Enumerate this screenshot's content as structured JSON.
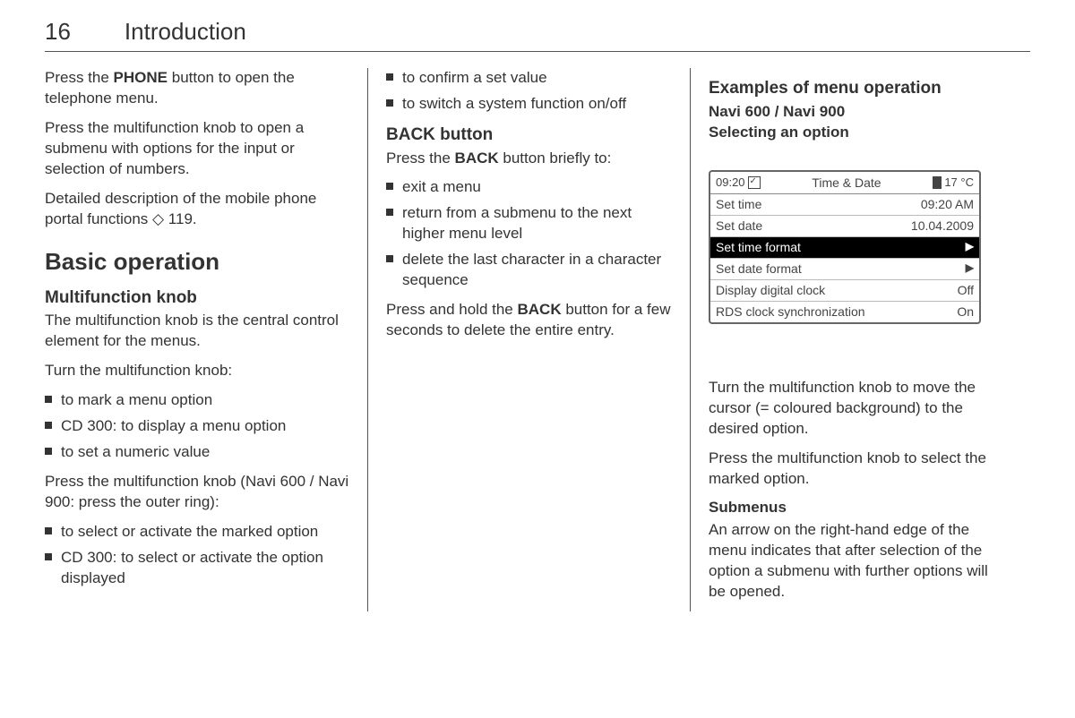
{
  "page": {
    "number": "16",
    "chapter": "Introduction"
  },
  "col1": {
    "p1_a": "Press the ",
    "p1_b": "PHONE",
    "p1_c": " button to open the telephone menu.",
    "p2": "Press the multifunction knob to open a submenu with options for the input or selection of numbers.",
    "p3": "Detailed description of the mobile phone portal functions ◇ 119.",
    "h2": "Basic operation",
    "h3": "Multifunction knob",
    "p4": "The multifunction knob is the central control element for the menus.",
    "p5": "Turn the multifunction knob:",
    "turn_list": [
      "to mark a menu option",
      "CD 300: to display a menu option",
      "to set a numeric value"
    ],
    "p6": "Press the multifunction knob (Navi 600 / Navi 900: press the outer ring):",
    "press_list": [
      "to select or activate the marked option",
      "CD 300: to select or activate the option displayed"
    ]
  },
  "col2": {
    "top_list": [
      "to confirm a set value",
      "to switch a system function on/off"
    ],
    "h3": "BACK button",
    "p1_a": "Press the ",
    "p1_b": "BACK",
    "p1_c": " button briefly to:",
    "back_list": [
      "exit a menu",
      "return from a submenu to the next higher menu level",
      "delete the last character in a character sequence"
    ],
    "p2_a": "Press and hold the ",
    "p2_b": "BACK",
    "p2_c": " button for a few seconds to delete the entire entry."
  },
  "col3": {
    "h3": "Examples of menu operation",
    "sub1": "Navi 600 / Navi 900",
    "sub2": "Selecting an option",
    "screen": {
      "time": "09:20",
      "title": "Time & Date",
      "temp": "17 °C",
      "rows": [
        {
          "label": "Set time",
          "value": "09:20 AM",
          "selected": false,
          "arrow": false
        },
        {
          "label": "Set date",
          "value": "10.04.2009",
          "selected": false,
          "arrow": false
        },
        {
          "label": "Set time format",
          "value": "",
          "selected": true,
          "arrow": true
        },
        {
          "label": "Set date format",
          "value": "",
          "selected": false,
          "arrow": true
        },
        {
          "label": "Display digital clock",
          "value": "Off",
          "selected": false,
          "arrow": false
        },
        {
          "label": "RDS clock synchronization",
          "value": "On",
          "selected": false,
          "arrow": false
        }
      ]
    },
    "p1": "Turn the multifunction knob to move the cursor (= coloured background) to the desired option.",
    "p2": "Press the multifunction knob to select the marked option.",
    "h4": "Submenus",
    "p3": "An arrow on the right-hand edge of the menu indicates that after selection of the option a submenu with further options will be opened."
  }
}
